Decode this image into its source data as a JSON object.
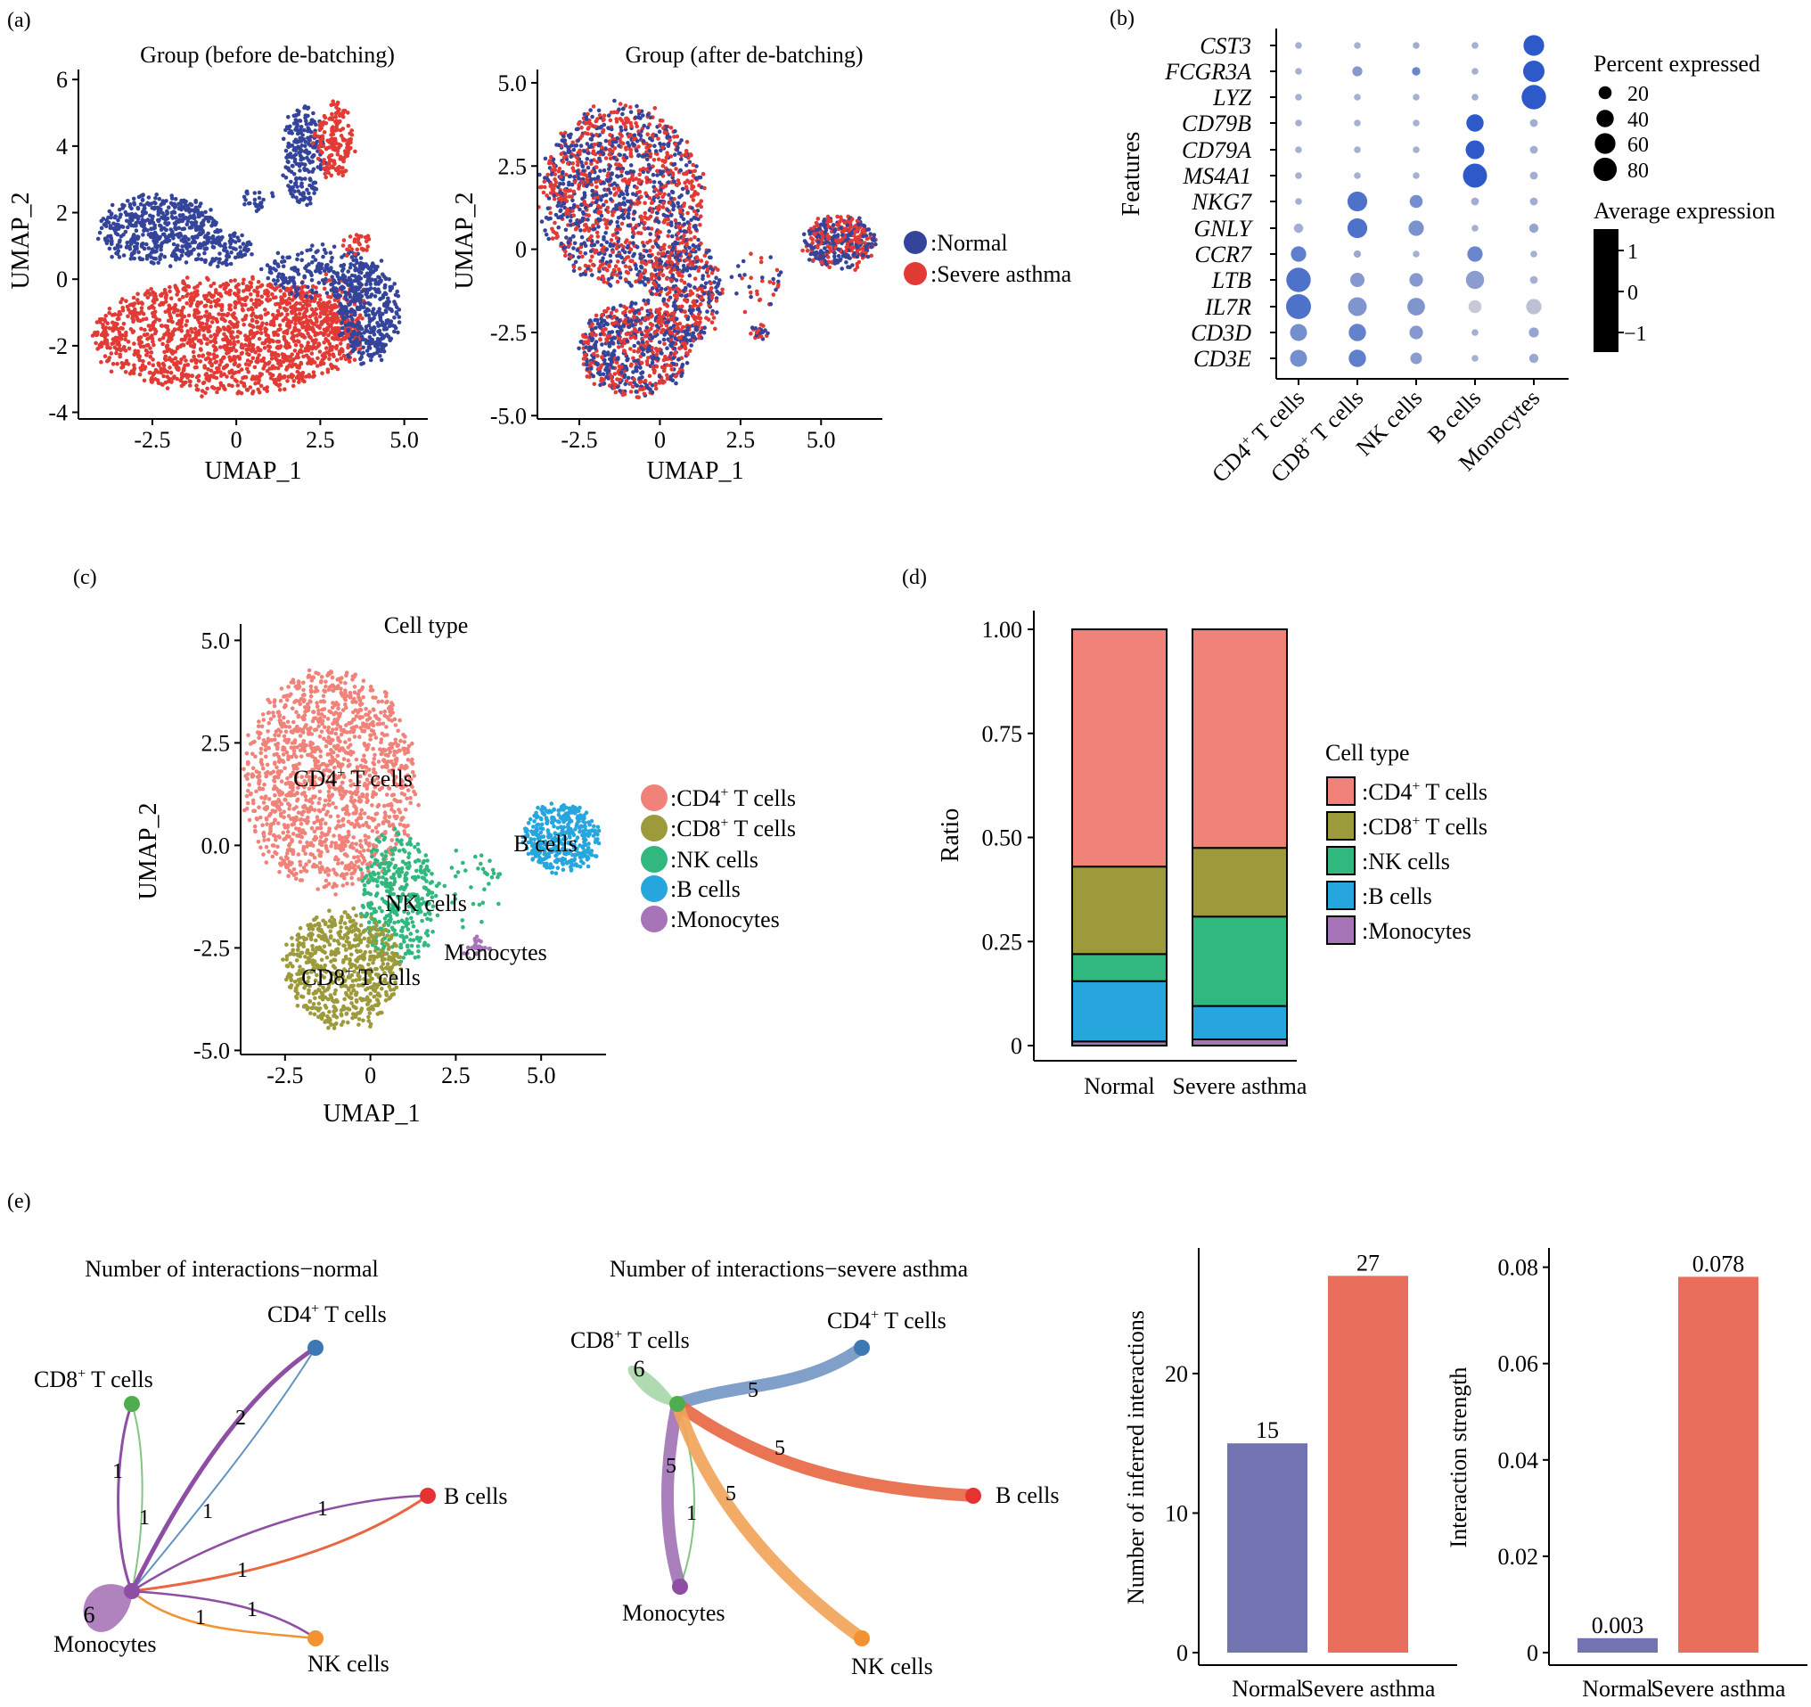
{
  "panel_labels": [
    "(a)",
    "(b)",
    "(c)",
    "(d)",
    "(e)"
  ],
  "colors": {
    "normal": "#34449a",
    "severe": "#e23a35",
    "cd4": "#f08279",
    "cd8": "#9c9a3b",
    "nk": "#30b87f",
    "b": "#27a6dd",
    "mono": "#a874b8",
    "bar_normal": "#7174b0",
    "bar_severe": "#e96e5b",
    "net_cd4": "#3c79b2",
    "net_cd8": "#4fad4f",
    "net_b": "#e53333",
    "net_mono": "#8e4ea3",
    "net_nk": "#f29230"
  },
  "chart_data": [
    {
      "id": "a1",
      "type": "scatter",
      "title": "Group (before de-batching)",
      "xlabel": "UMAP_1",
      "ylabel": "UMAP_2",
      "xticks": [
        "-2.5",
        "0",
        "2.5",
        "5.0"
      ],
      "yticks": [
        "-4",
        "-2",
        "0",
        "2",
        "4",
        "6"
      ],
      "xlim": [
        -4.7,
        5.7
      ],
      "ylim": [
        -4.2,
        6.3
      ],
      "series": [
        {
          "name": ":Normal",
          "color_key": "normal"
        },
        {
          "name": ":Severe asthma",
          "color_key": "severe"
        }
      ]
    },
    {
      "id": "a2",
      "type": "scatter",
      "title": "Group (after de-batching)",
      "xlabel": "UMAP_1",
      "ylabel": "UMAP_2",
      "xticks": [
        "-2.5",
        "0",
        "2.5",
        "5.0"
      ],
      "yticks": [
        "-5.0",
        "-2.5",
        "0",
        "2.5",
        "5.0"
      ],
      "xlim": [
        -3.8,
        6.9
      ],
      "ylim": [
        -5.1,
        5.4
      ]
    },
    {
      "id": "b",
      "type": "dot",
      "ylabel": "Features",
      "features": [
        "CST3",
        "FCGR3A",
        "LYZ",
        "CD79B",
        "CD79A",
        "MS4A1",
        "NKG7",
        "GNLY",
        "CCR7",
        "LTB",
        "IL7R",
        "CD3D",
        "CD3E"
      ],
      "groups": [
        "CD4+ T cells",
        "CD8+ T cells",
        "NK cells",
        "B cells",
        "Monocytes"
      ],
      "group_labels": [
        {
          "main": "CD4",
          "sup": "+",
          "rest": " T cells"
        },
        {
          "main": "CD8",
          "sup": "+",
          "rest": " T cells"
        },
        {
          "main": "NK cells",
          "sup": "",
          "rest": ""
        },
        {
          "main": "B cells",
          "sup": "",
          "rest": ""
        },
        {
          "main": "Monocytes",
          "sup": "",
          "rest": ""
        }
      ],
      "pct": [
        [
          3,
          3,
          3,
          3,
          60
        ],
        [
          3,
          10,
          6,
          3,
          65
        ],
        [
          3,
          3,
          3,
          3,
          88
        ],
        [
          3,
          3,
          3,
          40,
          5
        ],
        [
          3,
          3,
          3,
          48,
          5
        ],
        [
          3,
          3,
          3,
          85,
          5
        ],
        [
          3,
          55,
          20,
          5,
          5
        ],
        [
          8,
          55,
          30,
          3,
          8
        ],
        [
          30,
          4,
          3,
          30,
          3
        ],
        [
          88,
          25,
          22,
          45,
          5
        ],
        [
          92,
          48,
          42,
          20,
          30
        ],
        [
          38,
          40,
          22,
          3,
          10
        ],
        [
          38,
          40,
          15,
          3,
          8
        ]
      ],
      "avg": [
        [
          -0.6,
          -0.6,
          -0.5,
          -0.6,
          1.6
        ],
        [
          -0.6,
          0.0,
          0.5,
          -0.6,
          1.6
        ],
        [
          -0.6,
          -0.6,
          -0.6,
          -0.6,
          1.6
        ],
        [
          -0.6,
          -0.6,
          -0.6,
          1.6,
          -0.5
        ],
        [
          -0.6,
          -0.6,
          -0.6,
          1.6,
          -0.5
        ],
        [
          -0.6,
          -0.6,
          -0.6,
          1.6,
          -0.5
        ],
        [
          -0.6,
          1.0,
          0.3,
          -0.5,
          -0.5
        ],
        [
          -0.5,
          1.0,
          0.2,
          -0.6,
          -0.3
        ],
        [
          0.7,
          -0.4,
          -0.6,
          0.5,
          -0.6
        ],
        [
          1.0,
          0.0,
          0.0,
          -0.1,
          -0.6
        ],
        [
          1.0,
          0.1,
          0.1,
          -1.2,
          -1.0
        ],
        [
          0.3,
          0.6,
          0.0,
          -0.6,
          -0.3
        ],
        [
          0.3,
          0.7,
          -0.1,
          -0.6,
          -0.4
        ]
      ],
      "size_legend_title": "Percent expressed",
      "size_legend": [
        "20",
        "40",
        "60",
        "80"
      ],
      "color_legend_title": "Average expression",
      "color_legend": [
        "1",
        "0",
        "−1"
      ]
    },
    {
      "id": "c",
      "type": "scatter",
      "title": "Cell type",
      "xlabel": "UMAP_1",
      "ylabel": "UMAP_2",
      "xticks": [
        "-2.5",
        "0",
        "2.5",
        "5.0"
      ],
      "yticks": [
        "-5.0",
        "-2.5",
        "0.0",
        "2.5",
        "5.0"
      ],
      "xlim": [
        -3.8,
        6.9
      ],
      "ylim": [
        -5.1,
        5.4
      ],
      "cluster_labels": [
        {
          "main": "CD4",
          "sup": "+",
          "rest": " T cells"
        },
        {
          "main": "NK cells",
          "sup": "",
          "rest": ""
        },
        {
          "main": "B cells",
          "sup": "",
          "rest": ""
        },
        {
          "main": "Monocytes",
          "sup": "",
          "rest": ""
        },
        {
          "main": "CD8",
          "sup": "+",
          "rest": " T cells"
        }
      ],
      "legend": [
        {
          "main": ":CD4",
          "sup": "+",
          "rest": " T cells",
          "color_key": "cd4"
        },
        {
          "main": ":CD8",
          "sup": "+",
          "rest": " T cells",
          "color_key": "cd8"
        },
        {
          "main": ":NK cells",
          "sup": "",
          "rest": "",
          "color_key": "nk"
        },
        {
          "main": ":B cells",
          "sup": "",
          "rest": "",
          "color_key": "b"
        },
        {
          "main": ":Monocytes",
          "sup": "",
          "rest": "",
          "color_key": "mono"
        }
      ]
    },
    {
      "id": "d",
      "type": "bar",
      "stacked": true,
      "categories": [
        "Normal",
        "Severe asthma"
      ],
      "ylabel": "Ratio",
      "yticks": [
        "0",
        "0.25",
        "0.50",
        "0.75",
        "1.00"
      ],
      "ylim": [
        0,
        1
      ],
      "series": [
        {
          "name": ":Monocytes",
          "color_key": "mono",
          "values": [
            0.01,
            0.015
          ]
        },
        {
          "name": ":B cells",
          "color_key": "b",
          "values": [
            0.145,
            0.08
          ]
        },
        {
          "name": ":NK cells",
          "color_key": "nk",
          "values": [
            0.065,
            0.215
          ]
        },
        {
          "name": ":CD8+ T cells",
          "color_key": "cd8",
          "values": [
            0.21,
            0.165
          ]
        },
        {
          "name": ":CD4+ T cells",
          "color_key": "cd4",
          "values": [
            0.57,
            0.525
          ]
        }
      ],
      "legend_title": "Cell type",
      "legend": [
        {
          "main": ":CD4",
          "sup": "+",
          "rest": " T cells",
          "color_key": "cd4"
        },
        {
          "main": ":CD8",
          "sup": "+",
          "rest": " T cells",
          "color_key": "cd8"
        },
        {
          "main": ":NK cells",
          "sup": "",
          "rest": "",
          "color_key": "nk"
        },
        {
          "main": ":B cells",
          "sup": "",
          "rest": "",
          "color_key": "b"
        },
        {
          "main": ":Monocytes",
          "sup": "",
          "rest": "",
          "color_key": "mono"
        }
      ]
    },
    {
      "id": "e1",
      "type": "network",
      "title": "Number of interactions−normal",
      "nodes": [
        {
          "main": "CD4",
          "sup": "+",
          "rest": " T cells",
          "color_key": "net_cd4"
        },
        {
          "main": "CD8",
          "sup": "+",
          "rest": " T cells",
          "color_key": "net_cd8"
        },
        {
          "main": "B cells",
          "sup": "",
          "rest": "",
          "color_key": "net_b"
        },
        {
          "main": "Monocytes",
          "sup": "",
          "rest": "",
          "color_key": "net_mono"
        },
        {
          "main": "NK cells",
          "sup": "",
          "rest": "",
          "color_key": "net_nk"
        }
      ],
      "edge_labels": [
        "1",
        "1",
        "2",
        "1",
        "1",
        "1",
        "1",
        "1",
        "6"
      ]
    },
    {
      "id": "e2",
      "type": "network",
      "title": "Number of interactions−severe asthma",
      "nodes": [
        {
          "main": "CD8",
          "sup": "+",
          "rest": " T cells",
          "color_key": "net_cd8"
        },
        {
          "main": "CD4",
          "sup": "+",
          "rest": " T cells",
          "color_key": "net_cd4"
        },
        {
          "main": "B cells",
          "sup": "",
          "rest": "",
          "color_key": "net_b"
        },
        {
          "main": "Monocytes",
          "sup": "",
          "rest": "",
          "color_key": "net_mono"
        },
        {
          "main": "NK cells",
          "sup": "",
          "rest": "",
          "color_key": "net_nk"
        }
      ],
      "edge_labels": [
        "6",
        "5",
        "5",
        "5",
        "1",
        "5"
      ]
    },
    {
      "id": "e3",
      "type": "bar",
      "categories": [
        "Normal",
        "Severe asthma"
      ],
      "values": [
        15,
        27
      ],
      "value_labels": [
        "15",
        "27"
      ],
      "ylabel": "Number of inferred interactions",
      "yticks": [
        "0",
        "10",
        "20"
      ],
      "ylim": [
        0,
        29
      ]
    },
    {
      "id": "e4",
      "type": "bar",
      "categories": [
        "Normal",
        "Severe asthma"
      ],
      "values": [
        0.003,
        0.078
      ],
      "value_labels": [
        "0.003",
        "0.078"
      ],
      "ylabel": "Interaction strength",
      "yticks": [
        "0",
        "0.02",
        "0.04",
        "0.06",
        "0.08"
      ],
      "ylim": [
        0,
        0.084
      ]
    }
  ]
}
